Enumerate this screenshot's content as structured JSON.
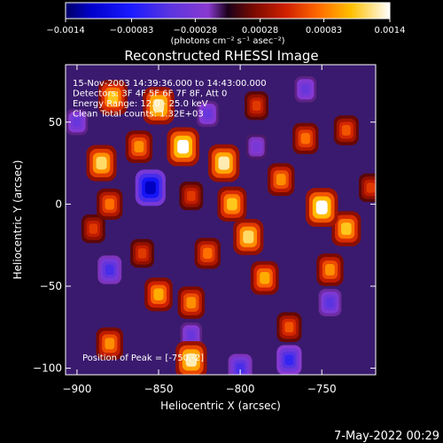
{
  "chart_data": {
    "type": "heatmap",
    "title": "Reconstructed RHESSI Image",
    "xlabel": "Heliocentric X (arcsec)",
    "ylabel": "Heliocentric Y (arcsec)",
    "xlim": [
      -907,
      -717
    ],
    "ylim": [
      -104,
      85
    ],
    "x_ticks": [
      -900,
      -850,
      -800,
      -750
    ],
    "x_tick_labels": [
      "−900",
      "−850",
      "−800",
      "−750"
    ],
    "y_ticks": [
      -100,
      -50,
      0,
      50
    ],
    "y_tick_labels": [
      "−100",
      "−50",
      "0",
      "50"
    ],
    "annotations": [
      "15-Nov-2003 14:39:36.000 to 14:43:00.000",
      "Detectors: 3F 4F 5F 6F 7F 8F, Att 0",
      "Energy Range: 12.0 - 25.0 keV",
      "Clean      Total counts: 1.32E+03"
    ],
    "peak_label": "Position of Peak = [-750,-2]",
    "peak": [
      -750,
      -2
    ],
    "colorbar": {
      "ticks": [
        -0.0014,
        -0.00083,
        -0.00028,
        0.00028,
        0.00083,
        0.0014
      ],
      "tick_labels": [
        "−0.0014",
        "−0.00083",
        "−0.00028",
        "0.00028",
        "0.00083",
        "0.0014"
      ],
      "unit_label": "(photons cm⁻² s⁻¹ asec⁻²)",
      "range": [
        -0.0014,
        0.0014
      ]
    },
    "features": [
      {
        "x": -878,
        "y": 65,
        "value": 0.0011
      },
      {
        "x": -850,
        "y": 60,
        "value": 0.0013
      },
      {
        "x": -835,
        "y": 35,
        "value": 0.0014
      },
      {
        "x": -862,
        "y": 35,
        "value": 0.0009
      },
      {
        "x": -885,
        "y": 25,
        "value": 0.0012
      },
      {
        "x": -880,
        "y": 0,
        "value": 0.0008
      },
      {
        "x": -890,
        "y": -15,
        "value": 0.0006
      },
      {
        "x": -810,
        "y": 25,
        "value": 0.0013
      },
      {
        "x": -805,
        "y": 0,
        "value": 0.0011
      },
      {
        "x": -795,
        "y": -20,
        "value": 0.0012
      },
      {
        "x": -785,
        "y": -45,
        "value": 0.001
      },
      {
        "x": -820,
        "y": -30,
        "value": 0.0008
      },
      {
        "x": -830,
        "y": 5,
        "value": 0.0006
      },
      {
        "x": -750,
        "y": -2,
        "value": 0.0014
      },
      {
        "x": -735,
        "y": -15,
        "value": 0.0011
      },
      {
        "x": -760,
        "y": 40,
        "value": 0.0008
      },
      {
        "x": -735,
        "y": 45,
        "value": 0.0007
      },
      {
        "x": -775,
        "y": 15,
        "value": 0.0009
      },
      {
        "x": -745,
        "y": -40,
        "value": 0.0009
      },
      {
        "x": -850,
        "y": -55,
        "value": 0.001
      },
      {
        "x": -830,
        "y": -60,
        "value": 0.0009
      },
      {
        "x": -880,
        "y": -85,
        "value": 0.0009
      },
      {
        "x": -830,
        "y": -95,
        "value": 0.0013
      },
      {
        "x": -770,
        "y": -75,
        "value": 0.0007
      },
      {
        "x": -790,
        "y": 60,
        "value": 0.0006
      },
      {
        "x": -860,
        "y": -30,
        "value": 0.0006
      },
      {
        "x": -720,
        "y": 10,
        "value": 0.0006
      },
      {
        "x": -855,
        "y": 10,
        "value": -0.0012
      },
      {
        "x": -880,
        "y": -40,
        "value": -0.0006
      },
      {
        "x": -770,
        "y": -95,
        "value": -0.0007
      },
      {
        "x": -800,
        "y": -100,
        "value": -0.0006
      },
      {
        "x": -745,
        "y": -60,
        "value": -0.0005
      },
      {
        "x": -820,
        "y": 55,
        "value": -0.0004
      },
      {
        "x": -760,
        "y": 70,
        "value": -0.0004
      },
      {
        "x": -830,
        "y": -80,
        "value": -0.0004
      },
      {
        "x": -900,
        "y": 50,
        "value": -0.0004
      },
      {
        "x": -790,
        "y": 35,
        "value": -0.0003
      }
    ]
  },
  "footer": {
    "date": "7-May-2022 00:29"
  }
}
